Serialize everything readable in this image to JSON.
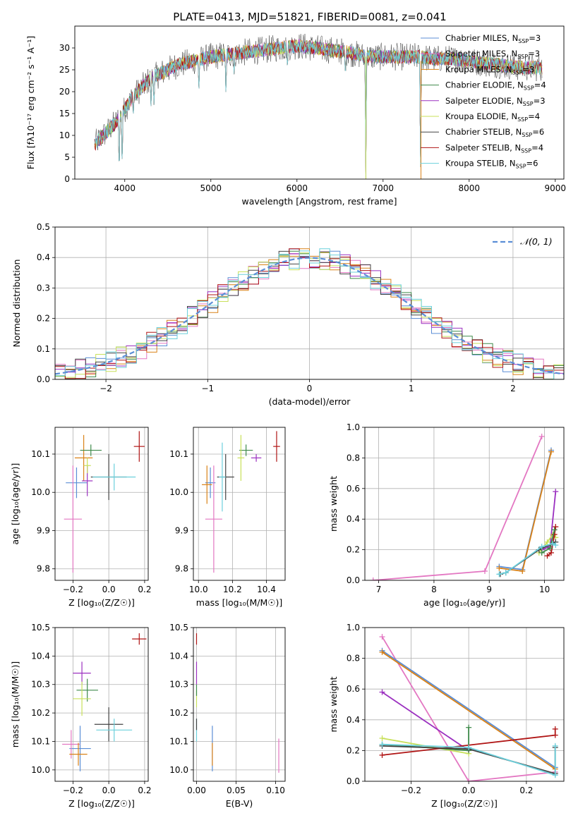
{
  "figure": {
    "title": "PLATE=0413, MJD=51821, FIBERID=0081, z=0.041"
  },
  "series_styles": [
    {
      "name": "Chabrier MILES",
      "nssp": "3",
      "color": "#5b8ed6"
    },
    {
      "name": "Salpeter MILES",
      "nssp": "3",
      "color": "#e377c2"
    },
    {
      "name": "Kroupa MILES",
      "nssp": "3",
      "color": "#d98218"
    },
    {
      "name": "Chabrier ELODIE",
      "nssp": "4",
      "color": "#3e8a4a"
    },
    {
      "name": "Salpeter ELODIE",
      "nssp": "3",
      "color": "#9b30c0"
    },
    {
      "name": "Kroupa ELODIE",
      "nssp": "4",
      "color": "#c8e05a"
    },
    {
      "name": "Chabrier STELIB",
      "nssp": "6",
      "color": "#444444"
    },
    {
      "name": "Salpeter STELIB",
      "nssp": "4",
      "color": "#b01515"
    },
    {
      "name": "Kroupa STELIB",
      "nssp": "6",
      "color": "#6cd0dc"
    }
  ],
  "chart_data": [
    {
      "id": "spectrum",
      "type": "line",
      "xlabel": "wavelength [Angstrom, rest frame]",
      "ylabel": "Flux [fλ10⁻¹⁷ erg cm⁻² s⁻¹ A⁻¹]",
      "xlim": [
        3420,
        9100
      ],
      "ylim": [
        0,
        35
      ],
      "xticks": [
        4000,
        5000,
        6000,
        7000,
        8000,
        9000
      ],
      "yticks": [
        0,
        5,
        10,
        15,
        20,
        25,
        30
      ],
      "envelope": {
        "x": [
          3650,
          3700,
          3800,
          3900,
          4000,
          4100,
          4200,
          4300,
          4400,
          4500,
          4600,
          4800,
          5000,
          5200,
          5400,
          5600,
          5800,
          6000,
          6200,
          6400,
          6600,
          6800,
          7000,
          7200,
          7400,
          7600,
          7800,
          8000,
          8200,
          8400,
          8600,
          8850
        ],
        "y": [
          8,
          9,
          11,
          13,
          16,
          19,
          21,
          23,
          24,
          25,
          26,
          27,
          28,
          28.5,
          29,
          29.5,
          30,
          30.5,
          30,
          29.5,
          29,
          28,
          28,
          28,
          28,
          27.5,
          27.5,
          27,
          26.5,
          26,
          25.5,
          25.5
        ]
      },
      "dips": [
        {
          "x": 3935,
          "y": 0
        },
        {
          "x": 3970,
          "y": 2
        },
        {
          "x": 4100,
          "y": 15
        },
        {
          "x": 4305,
          "y": 16
        },
        {
          "x": 4340,
          "y": 17
        },
        {
          "x": 4861,
          "y": 20
        },
        {
          "x": 5175,
          "y": 19
        },
        {
          "x": 5270,
          "y": 24
        },
        {
          "x": 5890,
          "y": 25
        },
        {
          "x": 6563,
          "y": 23
        },
        {
          "x": 6800,
          "y": 0
        },
        {
          "x": 7435,
          "y": 0
        }
      ]
    },
    {
      "id": "residuals",
      "type": "bar",
      "xlabel": "(data-model)/error",
      "ylabel": "Normed distribution",
      "xlim": [
        -2.5,
        2.5
      ],
      "ylim": [
        0,
        0.5
      ],
      "xticks": [
        -2,
        -1,
        0,
        1,
        2
      ],
      "xticklabels": [
        "−2",
        "−1",
        "0",
        "1",
        "2"
      ],
      "yticks": [
        0,
        0.1,
        0.2,
        0.3,
        0.4,
        0.5
      ],
      "legend": "𝒩(0, 1)",
      "bin_width": 0.1,
      "bins_start": -2.5
    },
    {
      "id": "z-age",
      "type": "scatter",
      "xlabel": "Z [log₁₀(Z/Z☉)]",
      "ylabel": "age  [log₁₀(age/yr)]",
      "xlim": [
        -0.3,
        0.22
      ],
      "ylim": [
        9.77,
        10.17
      ],
      "xticks": [
        -0.2,
        0,
        0.2
      ],
      "xticklabels": [
        "−0.2",
        "0.0",
        "0.2"
      ],
      "yticks": [
        9.8,
        9.9,
        10.0,
        10.1
      ],
      "points": [
        {
          "s": 0,
          "x": -0.18,
          "y": 10.025,
          "xe": 0.06,
          "ye": 0.04
        },
        {
          "s": 1,
          "x": -0.2,
          "y": 9.93,
          "xe": 0.05,
          "ye": 0.14
        },
        {
          "s": 2,
          "x": -0.14,
          "y": 10.09,
          "xe": 0.05,
          "ye": 0.06
        },
        {
          "s": 3,
          "x": -0.1,
          "y": 10.11,
          "xe": 0.06,
          "ye": 0.015
        },
        {
          "s": 4,
          "x": -0.12,
          "y": 10.03,
          "xe": 0.03,
          "ye": 0.04
        },
        {
          "s": 5,
          "x": -0.12,
          "y": 10.07,
          "xe": 0.02,
          "ye": 0.02
        },
        {
          "s": 6,
          "x": 0.0,
          "y": 10.04,
          "xe": 0.1,
          "ye": 0.06
        },
        {
          "s": 7,
          "x": 0.17,
          "y": 10.12,
          "xe": 0.03,
          "ye": 0.04
        },
        {
          "s": 8,
          "x": 0.03,
          "y": 10.04,
          "xe": 0.12,
          "ye": 0.035
        }
      ]
    },
    {
      "id": "mass-age",
      "type": "scatter",
      "xlabel": "mass [log₁₀(M/M☉)]",
      "ylabel": "",
      "xlim": [
        9.97,
        10.51
      ],
      "ylim": [
        9.77,
        10.17
      ],
      "xticks": [
        10.0,
        10.2,
        10.4
      ],
      "xticklabels": [
        "10.0",
        "10.2",
        "10.4"
      ],
      "yticks": [
        9.8,
        9.9,
        10.0,
        10.1
      ],
      "points": [
        {
          "s": 0,
          "x": 10.07,
          "y": 10.025,
          "xe": 0.03,
          "ye": 0.04
        },
        {
          "s": 1,
          "x": 10.09,
          "y": 9.93,
          "xe": 0.05,
          "ye": 0.14
        },
        {
          "s": 2,
          "x": 10.05,
          "y": 10.02,
          "xe": 0.03,
          "ye": 0.05
        },
        {
          "s": 3,
          "x": 10.28,
          "y": 10.11,
          "xe": 0.04,
          "ye": 0.015
        },
        {
          "s": 4,
          "x": 10.34,
          "y": 10.09,
          "xe": 0.03,
          "ye": 0.01
        },
        {
          "s": 5,
          "x": 10.25,
          "y": 10.09,
          "xe": 0.02,
          "ye": 0.06
        },
        {
          "s": 6,
          "x": 10.16,
          "y": 10.04,
          "xe": 0.05,
          "ye": 0.06
        },
        {
          "s": 7,
          "x": 10.46,
          "y": 10.12,
          "xe": 0.02,
          "ye": 0.04
        },
        {
          "s": 8,
          "x": 10.14,
          "y": 10.04,
          "xe": 0.02,
          "ye": 0.09
        }
      ]
    },
    {
      "id": "age-weight",
      "type": "line",
      "xlabel": "age  [log₁₀(age/yr)]",
      "ylabel": "mass weight",
      "xlim": [
        6.75,
        10.35
      ],
      "ylim": [
        0,
        1.0
      ],
      "xticks": [
        7,
        8,
        9,
        10
      ],
      "yticks": [
        0,
        0.2,
        0.4,
        0.6,
        0.8,
        1.0
      ],
      "series": [
        {
          "s": 1,
          "x": [
            6.9,
            8.92,
            9.95
          ],
          "y": [
            0.0,
            0.06,
            0.94
          ]
        },
        {
          "s": 0,
          "x": [
            9.18,
            9.6,
            10.12
          ],
          "y": [
            0.09,
            0.07,
            0.85
          ]
        },
        {
          "s": 2,
          "x": [
            9.18,
            9.6,
            10.12
          ],
          "y": [
            0.08,
            0.06,
            0.84
          ]
        },
        {
          "s": 4,
          "x": [
            9.95,
            10.1,
            10.2
          ],
          "y": [
            0.2,
            0.22,
            0.58
          ]
        },
        {
          "s": 5,
          "x": [
            9.9,
            10.05,
            10.15,
            10.2
          ],
          "y": [
            0.18,
            0.25,
            0.3,
            0.28
          ]
        },
        {
          "s": 7,
          "x": [
            10.05,
            10.12,
            10.18,
            10.2
          ],
          "y": [
            0.16,
            0.18,
            0.3,
            0.35
          ]
        },
        {
          "s": 3,
          "x": [
            9.95,
            10.1,
            10.18
          ],
          "y": [
            0.18,
            0.21,
            0.33
          ]
        },
        {
          "s": 6,
          "x": [
            9.2,
            9.3,
            9.9,
            10.15,
            10.2
          ],
          "y": [
            0.04,
            0.05,
            0.2,
            0.24,
            0.25
          ]
        },
        {
          "s": 8,
          "x": [
            9.18,
            9.3,
            9.95,
            10.15,
            10.2
          ],
          "y": [
            0.04,
            0.05,
            0.22,
            0.24,
            0.23
          ]
        }
      ]
    },
    {
      "id": "z-mass",
      "type": "scatter",
      "xlabel": "Z [log₁₀(Z/Z☉)]",
      "ylabel": "mass [log₁₀(M/M☉)]",
      "xlim": [
        -0.3,
        0.22
      ],
      "ylim": [
        9.96,
        10.5
      ],
      "xticks": [
        -0.2,
        0,
        0.2
      ],
      "xticklabels": [
        "−0.2",
        "0.0",
        "0.2"
      ],
      "yticks": [
        10.0,
        10.1,
        10.2,
        10.3,
        10.4,
        10.5
      ],
      "points": [
        {
          "s": 0,
          "x": -0.16,
          "y": 10.075,
          "xe": 0.06,
          "ye": 0.08
        },
        {
          "s": 1,
          "x": -0.21,
          "y": 10.09,
          "xe": 0.05,
          "ye": 0.05
        },
        {
          "s": 2,
          "x": -0.17,
          "y": 10.055,
          "xe": 0.05,
          "ye": 0.04
        },
        {
          "s": 3,
          "x": -0.12,
          "y": 10.28,
          "xe": 0.06,
          "ye": 0.04
        },
        {
          "s": 4,
          "x": -0.15,
          "y": 10.34,
          "xe": 0.05,
          "ye": 0.04
        },
        {
          "s": 5,
          "x": -0.15,
          "y": 10.25,
          "xe": 0.05,
          "ye": 0.06
        },
        {
          "s": 6,
          "x": 0.0,
          "y": 10.16,
          "xe": 0.08,
          "ye": 0.06
        },
        {
          "s": 7,
          "x": 0.17,
          "y": 10.46,
          "xe": 0.04,
          "ye": 0.02
        },
        {
          "s": 8,
          "x": 0.03,
          "y": 10.14,
          "xe": 0.1,
          "ye": 0.04
        }
      ]
    },
    {
      "id": "ebv-mass",
      "type": "scatter",
      "xlabel": "E(B-V)",
      "ylabel": "",
      "xlim": [
        -0.004,
        0.112
      ],
      "ylim": [
        9.96,
        10.5
      ],
      "xticks": [
        0,
        0.05,
        0.1
      ],
      "xticklabels": [
        "0.00",
        "0.05",
        "0.10"
      ],
      "yticks": [
        10.0,
        10.1,
        10.2,
        10.3,
        10.4,
        10.5
      ],
      "points": [
        {
          "s": 7,
          "x": 0.0,
          "y": 10.46,
          "xe": 0,
          "ye": 0.02
        },
        {
          "s": 4,
          "x": 0.0,
          "y": 10.34,
          "xe": 0,
          "ye": 0.04
        },
        {
          "s": 5,
          "x": 0.0,
          "y": 10.25,
          "xe": 0,
          "ye": 0.03
        },
        {
          "s": 3,
          "x": 0.0,
          "y": 10.28,
          "xe": 0,
          "ye": 0.02
        },
        {
          "s": 8,
          "x": 0.0,
          "y": 10.14,
          "xe": 0,
          "ye": 0.04
        },
        {
          "s": 6,
          "x": 0.0,
          "y": 10.16,
          "xe": 0,
          "ye": 0.02
        },
        {
          "s": 0,
          "x": 0.02,
          "y": 10.075,
          "xe": 0,
          "ye": 0.08
        },
        {
          "s": 2,
          "x": 0.02,
          "y": 10.055,
          "xe": 0,
          "ye": 0.04
        },
        {
          "s": 1,
          "x": 0.104,
          "y": 10.05,
          "xe": 0,
          "ye": 0.06
        }
      ]
    },
    {
      "id": "z-weight",
      "type": "line",
      "xlabel": "Z [log₁₀(Z/Z☉)]",
      "ylabel": "mass weight",
      "xlim": [
        -0.36,
        0.33
      ],
      "ylim": [
        0,
        1.0
      ],
      "xticks": [
        -0.2,
        0,
        0.2
      ],
      "xticklabels": [
        "−0.2",
        "0.0",
        "0.2"
      ],
      "yticks": [
        0,
        0.2,
        0.4,
        0.6,
        0.8,
        1.0
      ],
      "series": [
        {
          "s": 1,
          "x": [
            -0.3,
            0.0,
            0.3
          ],
          "y": [
            0.94,
            0.0,
            0.06
          ]
        },
        {
          "s": 0,
          "x": [
            -0.3,
            0.3
          ],
          "y": [
            0.85,
            0.09
          ]
        },
        {
          "s": 2,
          "x": [
            -0.3,
            0.3
          ],
          "y": [
            0.84,
            0.08
          ]
        },
        {
          "s": 4,
          "x": [
            -0.3,
            0.0
          ],
          "y": [
            0.58,
            0.2
          ]
        },
        {
          "s": 5,
          "x": [
            -0.3,
            0.0
          ],
          "y": [
            0.28,
            0.18
          ]
        },
        {
          "s": 3,
          "x": [
            -0.3,
            0.0,
            0.0
          ],
          "y": [
            0.24,
            0.2,
            0.35
          ]
        },
        {
          "s": 7,
          "x": [
            -0.3,
            0.3,
            0.3
          ],
          "y": [
            0.17,
            0.3,
            0.34
          ]
        },
        {
          "s": 6,
          "x": [
            -0.3,
            0.0,
            0.3,
            0.3
          ],
          "y": [
            0.23,
            0.21,
            0.05,
            0.22
          ]
        },
        {
          "s": 8,
          "x": [
            -0.3,
            0.0,
            0.3,
            0.3
          ],
          "y": [
            0.24,
            0.22,
            0.04,
            0.23
          ]
        }
      ]
    }
  ]
}
